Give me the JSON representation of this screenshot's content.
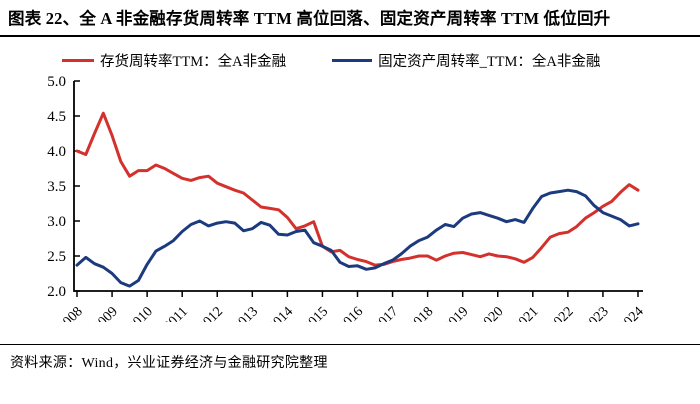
{
  "title": "图表 22、全 A 非金融存货周转率 TTM 高位回落、固定资产周转率 TTM 低位回升",
  "source_note": "资料来源：Wind，兴业证券经济与金融研究院整理",
  "colors": {
    "red_series": "#D4302C",
    "blue_series": "#1C3A7E",
    "axis": "#000000",
    "text": "#000000"
  },
  "chart_data": {
    "type": "line",
    "title": "",
    "xlabel": "",
    "ylabel": "",
    "ylim": [
      2.0,
      5.0
    ],
    "grid": false,
    "legend_position": "top",
    "ytick_labels": [
      "5.0",
      "4.5",
      "4.0",
      "3.5",
      "3.0",
      "2.5",
      "2.0"
    ],
    "xtick_labels": [
      "2008",
      "2009",
      "2010",
      "2011",
      "2012",
      "2013",
      "2014",
      "2015",
      "2016",
      "2017",
      "2018",
      "2019",
      "2020",
      "2021",
      "2022",
      "2023",
      "2024"
    ],
    "x_start": 2008.0,
    "x_step": 0.25,
    "series": [
      {
        "id": "inventory-turnover",
        "name": "存货周转率TTM：全A非金融",
        "color_key": "red_series",
        "values": [
          4.0,
          3.95,
          4.25,
          4.54,
          4.22,
          3.85,
          3.64,
          3.72,
          3.72,
          3.8,
          3.75,
          3.68,
          3.61,
          3.58,
          3.62,
          3.64,
          3.54,
          3.49,
          3.44,
          3.4,
          3.3,
          3.2,
          3.18,
          3.16,
          3.05,
          2.89,
          2.93,
          2.99,
          2.64,
          2.56,
          2.58,
          2.49,
          2.45,
          2.42,
          2.37,
          2.38,
          2.42,
          2.45,
          2.47,
          2.5,
          2.5,
          2.44,
          2.5,
          2.54,
          2.55,
          2.52,
          2.49,
          2.53,
          2.5,
          2.49,
          2.46,
          2.41,
          2.48,
          2.62,
          2.77,
          2.82,
          2.84,
          2.92,
          3.04,
          3.12,
          3.21,
          3.28,
          3.41,
          3.52,
          3.44
        ]
      },
      {
        "id": "fixed-asset-turnover",
        "name": "固定资产周转率_TTM：全A非金融",
        "color_key": "blue_series",
        "values": [
          2.37,
          2.48,
          2.39,
          2.34,
          2.25,
          2.12,
          2.07,
          2.15,
          2.38,
          2.57,
          2.64,
          2.72,
          2.85,
          2.95,
          3.0,
          2.93,
          2.97,
          2.99,
          2.97,
          2.86,
          2.89,
          2.98,
          2.94,
          2.81,
          2.8,
          2.85,
          2.87,
          2.69,
          2.64,
          2.58,
          2.41,
          2.35,
          2.36,
          2.31,
          2.33,
          2.39,
          2.44,
          2.53,
          2.64,
          2.72,
          2.77,
          2.87,
          2.95,
          2.92,
          3.04,
          3.1,
          3.12,
          3.08,
          3.04,
          2.99,
          3.02,
          2.98,
          3.18,
          3.35,
          3.4,
          3.42,
          3.44,
          3.42,
          3.36,
          3.22,
          3.12,
          3.07,
          3.02,
          2.93,
          2.96
        ]
      }
    ]
  }
}
